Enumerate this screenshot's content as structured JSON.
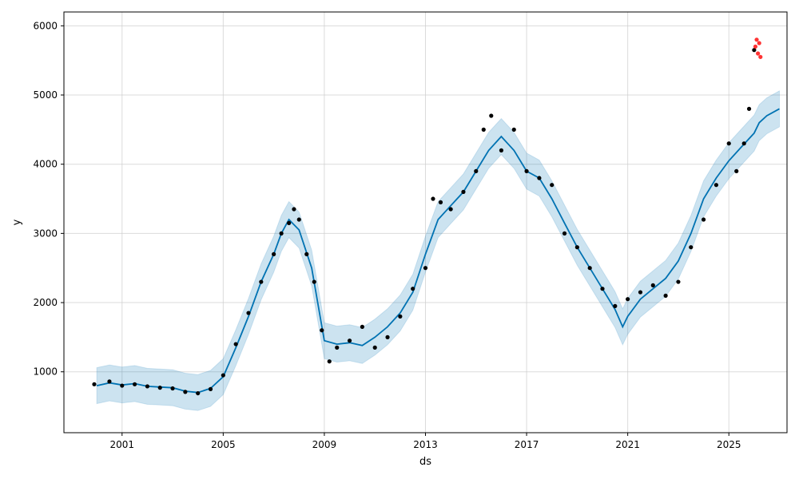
{
  "chart_data": {
    "type": "line",
    "xlabel": "ds",
    "ylabel": "y",
    "xlim": [
      1998.7,
      2027.3
    ],
    "ylim": [
      120,
      6200
    ],
    "grid": true,
    "x_ticks": [
      2001,
      2005,
      2009,
      2013,
      2017,
      2021,
      2025
    ],
    "y_ticks": [
      1000,
      2000,
      3000,
      4000,
      5000,
      6000
    ],
    "colors": {
      "forecast_line": "#0072B2",
      "uncertainty_band": "#0072B2",
      "observed": "#000000",
      "recent": "#ff0000",
      "grid": "#cccccc"
    },
    "series": [
      {
        "role": "forecast",
        "x": [
          2000.0,
          2000.5,
          2001.0,
          2001.5,
          2002.0,
          2002.5,
          2003.0,
          2003.5,
          2004.0,
          2004.5,
          2005.0,
          2005.5,
          2006.0,
          2006.5,
          2007.0,
          2007.3,
          2007.6,
          2008.0,
          2008.5,
          2009.0,
          2009.5,
          2010.0,
          2010.5,
          2011.0,
          2011.5,
          2012.0,
          2012.5,
          2013.0,
          2013.5,
          2014.0,
          2014.5,
          2015.0,
          2015.5,
          2016.0,
          2016.5,
          2017.0,
          2017.5,
          2018.0,
          2018.5,
          2019.0,
          2019.5,
          2020.0,
          2020.5,
          2020.8,
          2021.0,
          2021.5,
          2022.0,
          2022.5,
          2023.0,
          2023.5,
          2024.0,
          2024.5,
          2025.0,
          2025.5,
          2026.0,
          2026.2,
          2026.5,
          2027.0
        ],
        "y": [
          800,
          840,
          810,
          830,
          790,
          780,
          770,
          720,
          700,
          760,
          930,
          1350,
          1800,
          2300,
          2700,
          3000,
          3200,
          3050,
          2500,
          1450,
          1400,
          1420,
          1380,
          1500,
          1650,
          1850,
          2150,
          2700,
          3200,
          3400,
          3600,
          3900,
          4200,
          4400,
          4200,
          3900,
          3800,
          3500,
          3150,
          2800,
          2500,
          2200,
          1900,
          1650,
          1800,
          2050,
          2200,
          2350,
          2600,
          3000,
          3500,
          3800,
          4050,
          4250,
          4450,
          4600,
          4700,
          4800
        ]
      },
      {
        "role": "uncertainty_band",
        "x": [
          2000.0,
          2000.5,
          2001.0,
          2001.5,
          2002.0,
          2002.5,
          2003.0,
          2003.5,
          2004.0,
          2004.5,
          2005.0,
          2005.5,
          2006.0,
          2006.5,
          2007.0,
          2007.3,
          2007.6,
          2008.0,
          2008.5,
          2009.0,
          2009.5,
          2010.0,
          2010.5,
          2011.0,
          2011.5,
          2012.0,
          2012.5,
          2013.0,
          2013.5,
          2014.0,
          2014.5,
          2015.0,
          2015.5,
          2016.0,
          2016.5,
          2017.0,
          2017.5,
          2018.0,
          2018.5,
          2019.0,
          2019.5,
          2020.0,
          2020.5,
          2020.8,
          2021.0,
          2021.5,
          2022.0,
          2022.5,
          2023.0,
          2023.5,
          2024.0,
          2024.5,
          2025.0,
          2025.5,
          2026.0,
          2026.2,
          2026.5,
          2027.0
        ],
        "upper": [
          1060,
          1100,
          1070,
          1090,
          1050,
          1040,
          1030,
          980,
          960,
          1020,
          1190,
          1610,
          2060,
          2560,
          2960,
          3260,
          3460,
          3310,
          2760,
          1710,
          1660,
          1680,
          1640,
          1760,
          1910,
          2110,
          2410,
          2960,
          3460,
          3660,
          3860,
          4160,
          4460,
          4660,
          4460,
          4160,
          4060,
          3760,
          3410,
          3060,
          2760,
          2460,
          2160,
          1910,
          2060,
          2310,
          2460,
          2610,
          2860,
          3260,
          3760,
          4060,
          4310,
          4510,
          4710,
          4860,
          4960,
          5060
        ],
        "lower": [
          540,
          580,
          550,
          570,
          530,
          520,
          510,
          460,
          440,
          500,
          670,
          1090,
          1540,
          2040,
          2440,
          2740,
          2940,
          2790,
          2240,
          1190,
          1140,
          1160,
          1120,
          1240,
          1390,
          1590,
          1890,
          2440,
          2940,
          3140,
          3340,
          3640,
          3940,
          4140,
          3940,
          3640,
          3540,
          3240,
          2890,
          2540,
          2240,
          1940,
          1640,
          1390,
          1540,
          1790,
          1940,
          2090,
          2340,
          2740,
          3240,
          3540,
          3790,
          3990,
          4190,
          4340,
          4440,
          4540
        ]
      },
      {
        "role": "observed",
        "x": [
          1999.9,
          2000.5,
          2001.0,
          2001.5,
          2002.0,
          2002.5,
          2003.0,
          2003.5,
          2004.0,
          2004.5,
          2005.0,
          2005.5,
          2006.0,
          2006.5,
          2007.0,
          2007.3,
          2007.6,
          2007.8,
          2008.0,
          2008.3,
          2008.6,
          2008.9,
          2009.2,
          2009.5,
          2010.0,
          2010.5,
          2011.0,
          2011.5,
          2012.0,
          2012.5,
          2013.0,
          2013.3,
          2013.6,
          2014.0,
          2014.5,
          2015.0,
          2015.3,
          2015.6,
          2016.0,
          2016.5,
          2017.0,
          2017.5,
          2018.0,
          2018.5,
          2019.0,
          2019.5,
          2020.0,
          2020.5,
          2021.0,
          2021.5,
          2022.0,
          2022.5,
          2023.0,
          2023.5,
          2024.0,
          2024.5,
          2025.0,
          2025.3,
          2025.6,
          2025.8,
          2026.0
        ],
        "y": [
          820,
          860,
          800,
          820,
          790,
          770,
          760,
          710,
          690,
          750,
          950,
          1400,
          1850,
          2300,
          2700,
          3000,
          3150,
          3350,
          3200,
          2700,
          2300,
          1600,
          1150,
          1350,
          1450,
          1650,
          1350,
          1500,
          1800,
          2200,
          2500,
          3500,
          3450,
          3350,
          3600,
          3900,
          4500,
          4700,
          4200,
          4500,
          3900,
          3800,
          3700,
          3000,
          2800,
          2500,
          2200,
          1950,
          2050,
          2150,
          2250,
          2100,
          2300,
          2800,
          3200,
          3700,
          4300,
          3900,
          4300,
          4800,
          5650
        ]
      },
      {
        "role": "recent",
        "x": [
          2026.05,
          2026.1,
          2026.15,
          2026.2,
          2026.25
        ],
        "y": [
          5700,
          5800,
          5600,
          5750,
          5550
        ]
      }
    ]
  }
}
